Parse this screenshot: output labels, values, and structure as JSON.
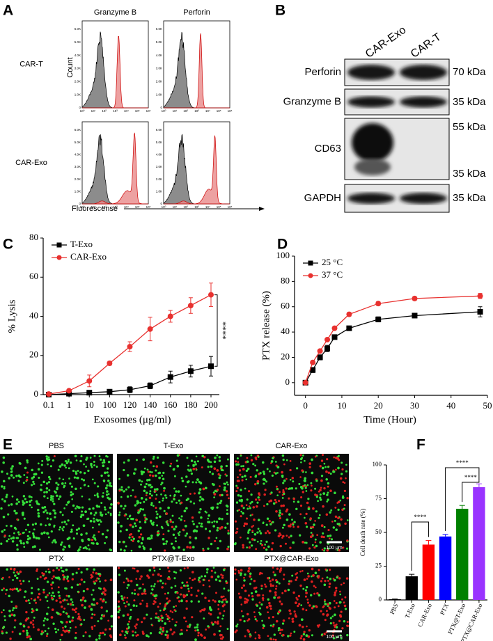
{
  "panel_labels": [
    "A",
    "B",
    "C",
    "D",
    "E",
    "F"
  ],
  "panel_a": {
    "columns": [
      "Granzyme B",
      "Perforin"
    ],
    "rows": [
      "CAR-T",
      "CAR-Exo"
    ],
    "y_axis_label": "Count",
    "x_axis_label": "Fluorescense",
    "yticks": [
      "0",
      "1.0K",
      "2.0K",
      "3.0K",
      "4.0K",
      "5.0K",
      "6.0K"
    ],
    "xticks": [
      "10⁰",
      "10¹",
      "10²",
      "10³",
      "10⁴",
      "10⁵",
      "10⁶"
    ]
  },
  "panel_b": {
    "columns": [
      "CAR-Exo",
      "CAR-T"
    ],
    "rows": [
      "Perforin",
      "Granzyme B",
      "CD63",
      "GAPDH"
    ],
    "markers": [
      "70 kDa",
      "35 kDa",
      "55 kDa",
      "35 kDa",
      "35 kDa"
    ]
  },
  "panel_e": {
    "conditions": [
      "PBS",
      "T-Exo",
      "CAR-Exo",
      "PTX",
      "PTX@T-Exo",
      "PTX@CAR-Exo"
    ],
    "scale_bar": "100 μm"
  },
  "chart_data": [
    {
      "type": "line",
      "categories": [
        "0.1",
        "1",
        "10",
        "100",
        "120",
        "140",
        "160",
        "180",
        "200"
      ],
      "x_label": "Exosomes (μg/ml)",
      "y_label": "% Lysis",
      "ylim": [
        0,
        80
      ],
      "yticks": [
        0,
        20,
        40,
        60,
        80
      ],
      "legend": "upper left",
      "annotation": "****",
      "series": [
        {
          "name": "T-Exo",
          "color": "#000000",
          "marker": "square",
          "values": [
            0,
            0.5,
            1,
            1.5,
            2.5,
            4.5,
            9,
            12,
            14.5
          ],
          "errors": [
            0.3,
            0.5,
            0.5,
            0.8,
            1.5,
            1.5,
            3,
            3,
            5
          ]
        },
        {
          "name": "CAR-Exo",
          "color": "#e8312f",
          "marker": "circle",
          "values": [
            0.3,
            2,
            7,
            16,
            24.5,
            33.5,
            40,
            45.5,
            51
          ],
          "errors": [
            0.3,
            0.7,
            3,
            1,
            2.5,
            6,
            3,
            4,
            6
          ]
        }
      ]
    },
    {
      "type": "line",
      "x": [
        0,
        2,
        4,
        6,
        8,
        12,
        20,
        30,
        48
      ],
      "xlim": [
        -3,
        50
      ],
      "xticks": [
        0,
        10,
        20,
        30,
        40,
        50
      ],
      "x_label": "Time (Hour)",
      "y_label": "PTX release (%)",
      "ylim": [
        -10,
        100
      ],
      "yticks": [
        0,
        20,
        40,
        60,
        80,
        100
      ],
      "legend": "upper left",
      "series": [
        {
          "name": "25 °C",
          "color": "#000000",
          "marker": "square",
          "values": [
            0,
            10,
            20,
            27,
            36,
            43,
            50,
            53,
            56
          ],
          "errors": [
            0,
            2,
            2,
            2.5,
            1,
            1,
            2,
            1.5,
            4
          ]
        },
        {
          "name": "37 °C",
          "color": "#e8312f",
          "marker": "circle",
          "values": [
            0,
            16,
            25,
            34,
            43,
            54,
            62.5,
            66.5,
            68.5
          ],
          "errors": [
            0,
            1,
            1,
            1,
            1,
            1.5,
            1.5,
            1.5,
            2
          ]
        }
      ]
    },
    {
      "type": "bar",
      "categories": [
        "PBS",
        "T-Exo",
        "CAR-Exo",
        "PTX",
        "PTX@T-Exo",
        "PTX@CAR-Exo"
      ],
      "values": [
        0.5,
        17.5,
        41,
        47,
        67.5,
        83.5
      ],
      "errors": [
        0.2,
        1.5,
        3,
        1.5,
        2.5,
        2.5
      ],
      "colors": [
        "#000000",
        "#000000",
        "#ff0000",
        "#0000ff",
        "#008000",
        "#9933ff"
      ],
      "ylim": [
        0,
        100
      ],
      "yticks": [
        0,
        25,
        50,
        75,
        100
      ],
      "y_label": "Cell death rate (%)",
      "annotations": [
        "****",
        "****",
        "****"
      ]
    }
  ]
}
